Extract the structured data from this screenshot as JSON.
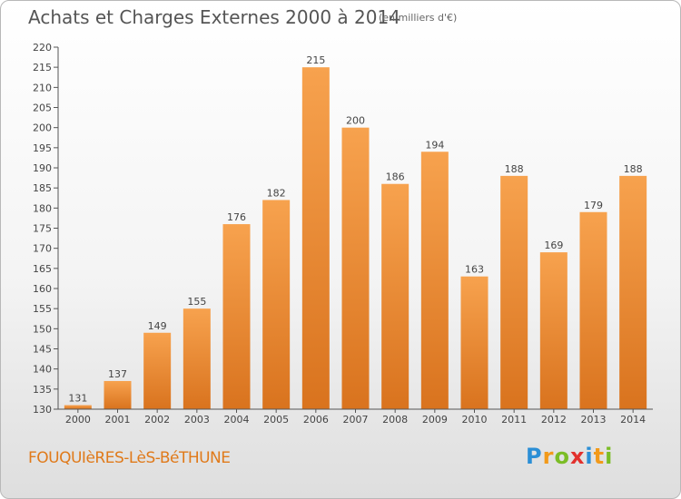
{
  "header": {
    "title": "Achats et Charges Externes 2000 à 2014",
    "subtitle": "(en milliers d'€)"
  },
  "footer": {
    "commune": "FOUQUIèRES-LèS-BéTHUNE",
    "brand_letters": [
      "P",
      "r",
      "o",
      "x",
      "i",
      "t",
      "i"
    ],
    "brand_colors": [
      "#2b8fd6",
      "#f29a1a",
      "#7bbd26",
      "#e2312d",
      "#2b8fd6",
      "#f29a1a",
      "#7bbd26"
    ]
  },
  "chart_data": {
    "type": "bar",
    "categories": [
      "2000",
      "2001",
      "2002",
      "2003",
      "2004",
      "2005",
      "2006",
      "2007",
      "2008",
      "2009",
      "2010",
      "2011",
      "2012",
      "2013",
      "2014"
    ],
    "values": [
      131,
      137,
      149,
      155,
      176,
      182,
      215,
      200,
      186,
      194,
      163,
      188,
      169,
      179,
      188
    ],
    "ylim": [
      130,
      220
    ],
    "yticks": [
      130,
      135,
      140,
      145,
      150,
      155,
      160,
      165,
      170,
      175,
      180,
      185,
      190,
      195,
      200,
      205,
      210,
      215,
      220
    ],
    "grid": false,
    "bar_color_top": "#f7a24e",
    "bar_color_bottom": "#d9731e"
  }
}
